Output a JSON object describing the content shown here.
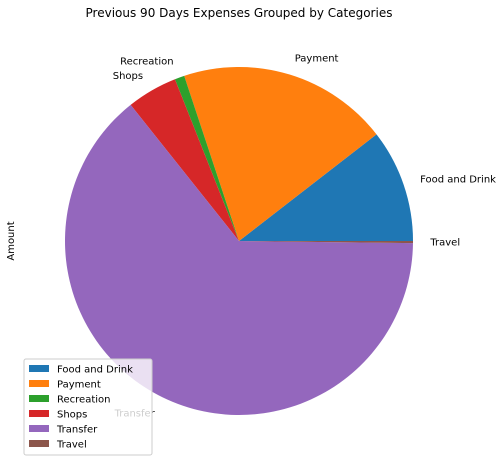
{
  "chart_data": {
    "type": "pie",
    "title": "Previous 90 Days Expenses Grouped by Categories",
    "ylabel": "Amount",
    "start_angle_deg": 0,
    "direction": "counterclockwise",
    "legend_position": "lower-left",
    "slices": [
      {
        "label": "Food and Drink",
        "value": 10.5,
        "color": "#1f77b4"
      },
      {
        "label": "Payment",
        "value": 19.6,
        "color": "#ff7f0e"
      },
      {
        "label": "Recreation",
        "value": 0.9,
        "color": "#2ca02c"
      },
      {
        "label": "Shops",
        "value": 4.7,
        "color": "#d62728"
      },
      {
        "label": "Transfer",
        "value": 64.1,
        "color": "#9467bd"
      },
      {
        "label": "Travel",
        "value": 0.2,
        "color": "#8c564b"
      }
    ]
  }
}
